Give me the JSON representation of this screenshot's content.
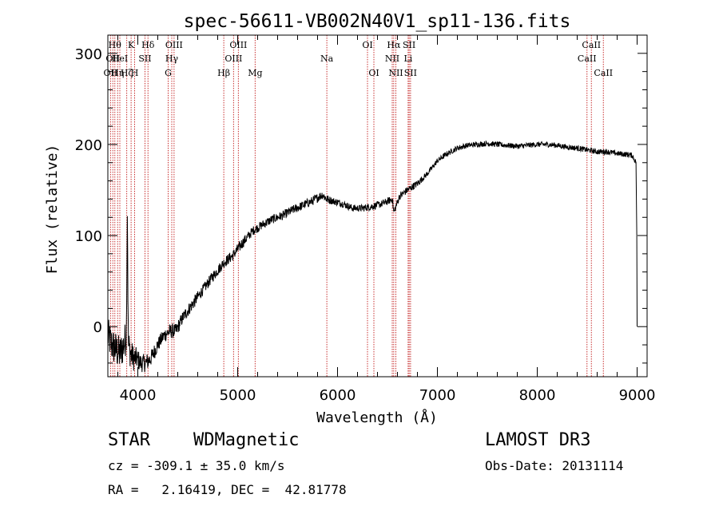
{
  "chart_data": {
    "type": "line",
    "title": "spec-56611-VB002N40V1_sp11-136.fits",
    "xlabel": "Wavelength (Å)",
    "ylabel": "Flux (relative)",
    "xlim": [
      3700,
      9100
    ],
    "ylim": [
      -55,
      320
    ],
    "xticks": [
      4000,
      5000,
      6000,
      7000,
      8000,
      9000
    ],
    "yticks": [
      0,
      100,
      200,
      300
    ],
    "grid": false,
    "spectrum_anchors": {
      "wavelength": [
        3700,
        3740,
        3780,
        3820,
        3860,
        3885,
        3895,
        3905,
        3930,
        3960,
        3990,
        4030,
        4080,
        4130,
        4200,
        4260,
        4320,
        4380,
        4450,
        4550,
        4650,
        4750,
        4860,
        4950,
        5050,
        5150,
        5250,
        5350,
        5450,
        5550,
        5650,
        5750,
        5850,
        5890,
        5950,
        6050,
        6150,
        6250,
        6350,
        6450,
        6550,
        6563,
        6620,
        6700,
        6800,
        6900,
        7000,
        7100,
        7200,
        7300,
        7400,
        7500,
        7600,
        7700,
        7800,
        7900,
        8000,
        8100,
        8200,
        8300,
        8400,
        8500,
        8600,
        8700,
        8800,
        8900,
        8950,
        8990,
        9000
      ],
      "flux": [
        -10,
        -20,
        -25,
        -30,
        -20,
        -10,
        130,
        -20,
        -30,
        -35,
        -35,
        -40,
        -40,
        -35,
        -20,
        -10,
        -5,
        -5,
        10,
        25,
        40,
        55,
        70,
        78,
        92,
        105,
        112,
        118,
        122,
        128,
        133,
        138,
        145,
        140,
        138,
        135,
        130,
        130,
        132,
        135,
        140,
        125,
        143,
        150,
        157,
        168,
        182,
        190,
        196,
        199,
        200,
        201,
        200,
        199,
        198,
        199,
        200,
        200,
        199,
        197,
        196,
        194,
        192,
        192,
        190,
        189,
        188,
        180,
        0
      ],
      "noise": [
        20,
        20,
        20,
        20,
        20,
        20,
        20,
        20,
        16,
        14,
        12,
        10,
        10,
        9,
        8,
        8,
        8,
        8,
        7,
        7,
        6,
        6,
        6,
        6,
        6,
        5,
        5,
        5,
        5,
        5,
        5,
        5,
        5,
        5,
        4,
        4,
        4,
        4,
        4,
        4,
        4,
        4,
        4,
        4,
        4,
        3,
        3,
        3,
        3,
        3,
        3,
        3,
        3,
        3,
        3,
        3,
        3,
        3,
        3,
        3,
        3,
        3,
        3,
        3,
        3,
        3,
        3,
        3,
        3
      ]
    },
    "spectral_lines": [
      {
        "wavelength": 3727,
        "label": "OII",
        "row": 2
      },
      {
        "wavelength": 3750,
        "label": "OII",
        "row": 1
      },
      {
        "wavelength": 3770,
        "label": "Hθ",
        "row": 0
      },
      {
        "wavelength": 3798,
        "label": "Hη",
        "row": 2
      },
      {
        "wavelength": 3820,
        "label": "HeI",
        "row": 1
      },
      {
        "wavelength": 3889,
        "label": "Hζ",
        "row": 2
      },
      {
        "wavelength": 3933,
        "label": "K",
        "row": 0
      },
      {
        "wavelength": 3968,
        "label": "H",
        "row": 2
      },
      {
        "wavelength": 4072,
        "label": "SII",
        "row": 1
      },
      {
        "wavelength": 4102,
        "label": "Hδ",
        "row": 0
      },
      {
        "wavelength": 4304,
        "label": "G",
        "row": 2
      },
      {
        "wavelength": 4340,
        "label": "Hγ",
        "row": 1
      },
      {
        "wavelength": 4363,
        "label": "OIII",
        "row": 0
      },
      {
        "wavelength": 4861,
        "label": "Hβ",
        "row": 2
      },
      {
        "wavelength": 4959,
        "label": "OIII",
        "row": 1
      },
      {
        "wavelength": 5007,
        "label": "OIII",
        "row": 0
      },
      {
        "wavelength": 5175,
        "label": "Mg",
        "row": 2
      },
      {
        "wavelength": 5893,
        "label": "Na",
        "row": 1
      },
      {
        "wavelength": 6300,
        "label": "OI",
        "row": 0
      },
      {
        "wavelength": 6364,
        "label": "OI",
        "row": 2
      },
      {
        "wavelength": 6548,
        "label": "NII",
        "row": 1
      },
      {
        "wavelength": 6563,
        "label": "Hα",
        "row": 0
      },
      {
        "wavelength": 6584,
        "label": "NII",
        "row": 2
      },
      {
        "wavelength": 6707,
        "label": "Li",
        "row": 1
      },
      {
        "wavelength": 6717,
        "label": "SII",
        "row": 0
      },
      {
        "wavelength": 6731,
        "label": "SII",
        "row": 2
      },
      {
        "wavelength": 8498,
        "label": "CaII",
        "row": 1
      },
      {
        "wavelength": 8542,
        "label": "CaII",
        "row": 0
      },
      {
        "wavelength": 8662,
        "label": "CaII",
        "row": 2
      }
    ]
  },
  "info": {
    "class": "STAR",
    "subclass": "WDMagnetic",
    "survey": "LAMOST DR3",
    "cz": "cz = -309.1 ± 35.0 km/s",
    "obs_date": "Obs-Date: 20131114",
    "coords": "RA =   2.16419, DEC =  42.81778"
  },
  "colors": {
    "spectrum": "#000000",
    "line_marker": "#c83232",
    "axes": "#000000"
  }
}
